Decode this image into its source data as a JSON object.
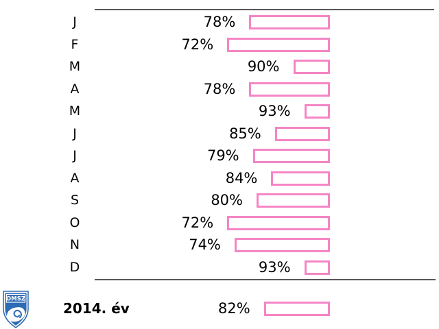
{
  "chart_data": {
    "type": "bar",
    "orientation": "horizontal",
    "title": "",
    "categories": [
      "J",
      "F",
      "M",
      "A",
      "M",
      "J",
      "J",
      "A",
      "S",
      "O",
      "N",
      "D"
    ],
    "values": [
      78,
      72,
      90,
      78,
      93,
      85,
      79,
      84,
      80,
      72,
      74,
      93
    ],
    "value_suffix": "%",
    "axis_max": 100,
    "bars_anchored_right_at": "100%",
    "bar_style": "outlined",
    "legend": "none",
    "grid": "off",
    "summary": {
      "label": "2014. év",
      "value": 82
    }
  },
  "colors": {
    "bar_outline": "#f585c5",
    "axis_line": "#58585a",
    "logo_blue": "#2e6cb4",
    "text": "#000000"
  },
  "logo": {
    "text": "OMSZ"
  }
}
